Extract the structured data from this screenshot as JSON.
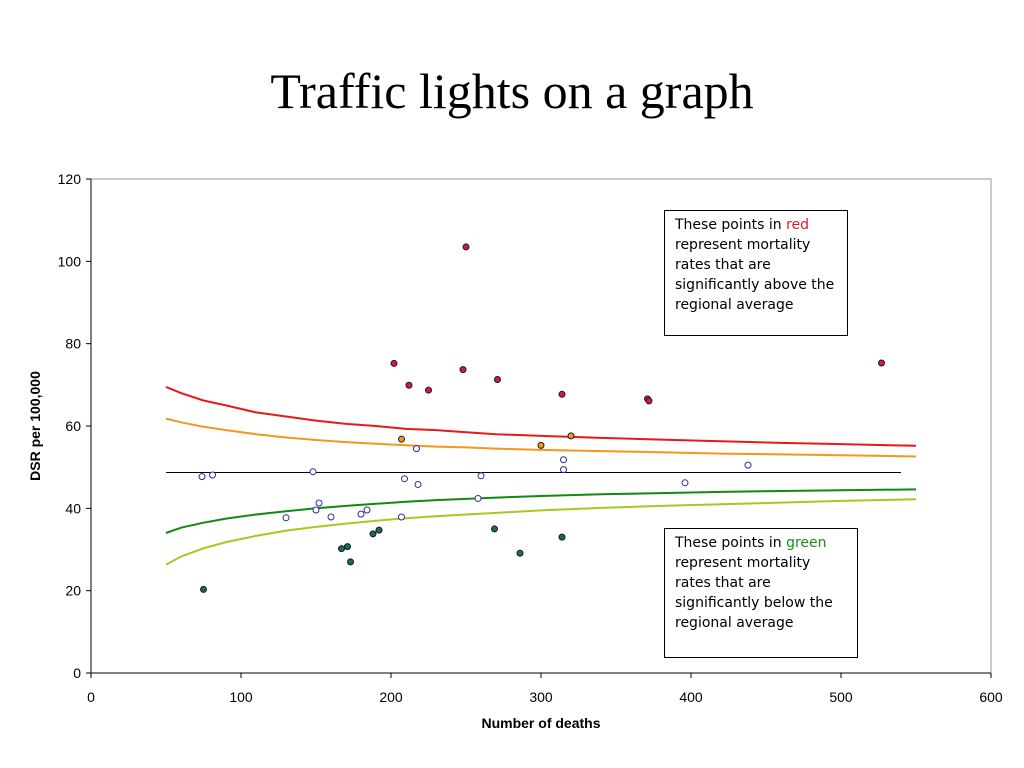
{
  "title": "Traffic lights on a graph",
  "colors": {
    "red_line": "#e8191e",
    "orange_line": "#f7961d",
    "green_line": "#118a11",
    "lightgreen_line": "#a6c91e",
    "mean_line": "#000000",
    "red_point": "#d4145a",
    "orange_point": "#f7961d",
    "white_point": "#ffffff",
    "white_point_stroke": "#2a2a9e",
    "green_point": "#1b6a5b",
    "frame": "#9a9a9a"
  },
  "notes": {
    "red": {
      "prefix": "These points in ",
      "word": "red",
      "suffix": "represent mortality rates that are significantly above the regional average"
    },
    "green": {
      "prefix": "These points in ",
      "word": "green",
      "suffix": "represent mortality rates that are significantly below the regional average"
    }
  },
  "chart_data": {
    "type": "scatter",
    "xlabel": "Number of deaths",
    "ylabel": "DSR per 100,000",
    "xlim": [
      0,
      600
    ],
    "ylim": [
      0,
      120
    ],
    "xticks": [
      0,
      100,
      200,
      300,
      400,
      500,
      600
    ],
    "yticks": [
      0,
      20,
      40,
      60,
      80,
      100,
      120
    ],
    "grid": false,
    "mean_line": {
      "y": 48.7,
      "x": [
        50,
        540
      ]
    },
    "control_lines": [
      {
        "color_key": "red_line",
        "points": [
          [
            50,
            69.5
          ],
          [
            60,
            68
          ],
          [
            75,
            66.2
          ],
          [
            90,
            65
          ],
          [
            110,
            63.3
          ],
          [
            130,
            62.3
          ],
          [
            150,
            61.3
          ],
          [
            170,
            60.5
          ],
          [
            190,
            60
          ],
          [
            210,
            59.3
          ],
          [
            230,
            59
          ],
          [
            250,
            58.5
          ],
          [
            270,
            58
          ],
          [
            300,
            57.6
          ],
          [
            340,
            57.1
          ],
          [
            380,
            56.7
          ],
          [
            420,
            56.3
          ],
          [
            460,
            55.9
          ],
          [
            500,
            55.6
          ],
          [
            550,
            55.2
          ]
        ]
      },
      {
        "color_key": "orange_line",
        "points": [
          [
            50,
            61.8
          ],
          [
            60,
            60.9
          ],
          [
            75,
            59.8
          ],
          [
            90,
            59
          ],
          [
            110,
            58
          ],
          [
            130,
            57.2
          ],
          [
            150,
            56.6
          ],
          [
            170,
            56.1
          ],
          [
            190,
            55.7
          ],
          [
            210,
            55.3
          ],
          [
            230,
            55
          ],
          [
            250,
            54.8
          ],
          [
            270,
            54.5
          ],
          [
            300,
            54.2
          ],
          [
            340,
            53.9
          ],
          [
            380,
            53.6
          ],
          [
            420,
            53.3
          ],
          [
            460,
            53.1
          ],
          [
            500,
            52.9
          ],
          [
            550,
            52.6
          ]
        ]
      },
      {
        "color_key": "green_line",
        "points": [
          [
            50,
            34
          ],
          [
            60,
            35.3
          ],
          [
            75,
            36.5
          ],
          [
            90,
            37.5
          ],
          [
            110,
            38.5
          ],
          [
            130,
            39.3
          ],
          [
            150,
            40
          ],
          [
            170,
            40.6
          ],
          [
            190,
            41.1
          ],
          [
            210,
            41.6
          ],
          [
            230,
            42
          ],
          [
            250,
            42.3
          ],
          [
            270,
            42.6
          ],
          [
            300,
            43
          ],
          [
            340,
            43.4
          ],
          [
            380,
            43.7
          ],
          [
            420,
            44
          ],
          [
            460,
            44.2
          ],
          [
            500,
            44.4
          ],
          [
            550,
            44.6
          ]
        ]
      },
      {
        "color_key": "lightgreen_line",
        "points": [
          [
            50,
            26.3
          ],
          [
            60,
            28.3
          ],
          [
            75,
            30.3
          ],
          [
            90,
            31.8
          ],
          [
            110,
            33.3
          ],
          [
            130,
            34.6
          ],
          [
            150,
            35.5
          ],
          [
            170,
            36.3
          ],
          [
            190,
            37
          ],
          [
            210,
            37.6
          ],
          [
            230,
            38.1
          ],
          [
            250,
            38.5
          ],
          [
            270,
            38.9
          ],
          [
            300,
            39.5
          ],
          [
            340,
            40.1
          ],
          [
            380,
            40.6
          ],
          [
            420,
            41
          ],
          [
            460,
            41.4
          ],
          [
            500,
            41.8
          ],
          [
            550,
            42.2
          ]
        ]
      }
    ],
    "series": [
      {
        "color_key": "red_point",
        "points": [
          [
            202,
            75.2
          ],
          [
            212,
            69.9
          ],
          [
            225,
            68.7
          ],
          [
            248,
            73.7
          ],
          [
            250,
            103.5
          ],
          [
            271,
            71.3
          ],
          [
            314,
            67.7
          ],
          [
            371,
            66.6
          ],
          [
            372,
            66.1
          ],
          [
            527,
            75.3
          ]
        ]
      },
      {
        "color_key": "orange_point",
        "points": [
          [
            207,
            56.8
          ],
          [
            300,
            55.3
          ],
          [
            320,
            57.6
          ]
        ]
      },
      {
        "color_key": "white_point",
        "points": [
          [
            74,
            47.7
          ],
          [
            81,
            48.1
          ],
          [
            130,
            37.7
          ],
          [
            148,
            48.9
          ],
          [
            150,
            39.6
          ],
          [
            152,
            41.3
          ],
          [
            160,
            37.9
          ],
          [
            180,
            38.6
          ],
          [
            184,
            39.6
          ],
          [
            207,
            37.9
          ],
          [
            209,
            47.2
          ],
          [
            217,
            54.5
          ],
          [
            218,
            45.8
          ],
          [
            258,
            42.4
          ],
          [
            260,
            47.9
          ],
          [
            315,
            49.4
          ],
          [
            315,
            51.8
          ],
          [
            396,
            46.2
          ],
          [
            438,
            50.5
          ]
        ]
      },
      {
        "color_key": "green_point",
        "points": [
          [
            75,
            20.3
          ],
          [
            167,
            30.2
          ],
          [
            171,
            30.7
          ],
          [
            173,
            27
          ],
          [
            188,
            33.8
          ],
          [
            192,
            34.7
          ],
          [
            269,
            35
          ],
          [
            286,
            29.1
          ],
          [
            314,
            33
          ]
        ]
      }
    ]
  }
}
